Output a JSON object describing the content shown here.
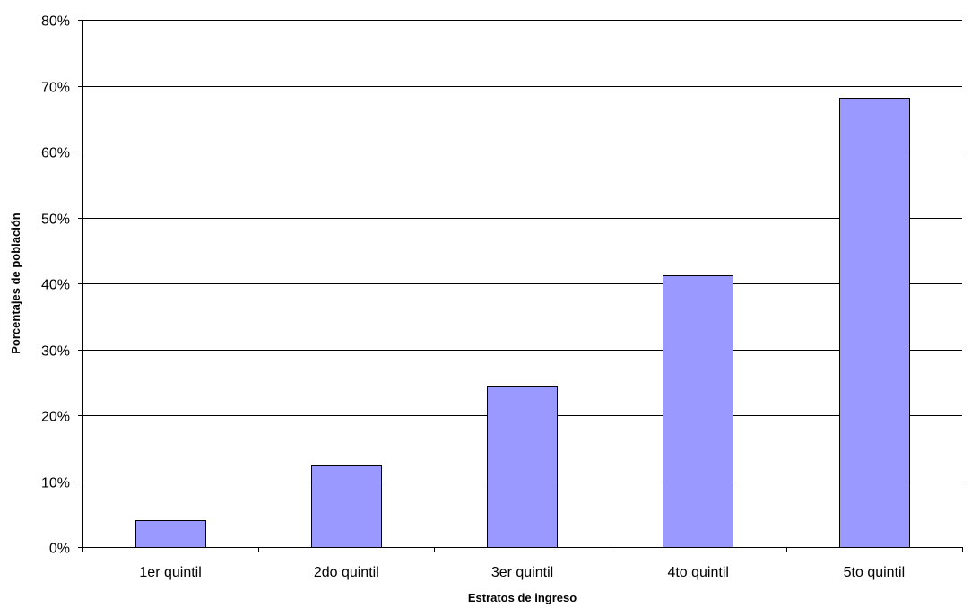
{
  "chart_data": {
    "type": "bar",
    "categories": [
      "1er quintil",
      "2do quintil",
      "3er quintil",
      "4to quintil",
      "5to quintil"
    ],
    "values": [
      4.1,
      12.4,
      24.5,
      41.2,
      68.2
    ],
    "ylim": [
      0,
      80
    ],
    "yticks": [
      0,
      10,
      20,
      30,
      40,
      50,
      60,
      70,
      80
    ],
    "ytick_labels": [
      "0%",
      "10%",
      "20%",
      "30%",
      "40%",
      "50%",
      "60%",
      "70%",
      "80%"
    ],
    "xlabel": "Estratos de ingreso",
    "ylabel": "Porcentajes de población",
    "grid": true,
    "legend": "none",
    "bar_color": "#9999FF"
  }
}
